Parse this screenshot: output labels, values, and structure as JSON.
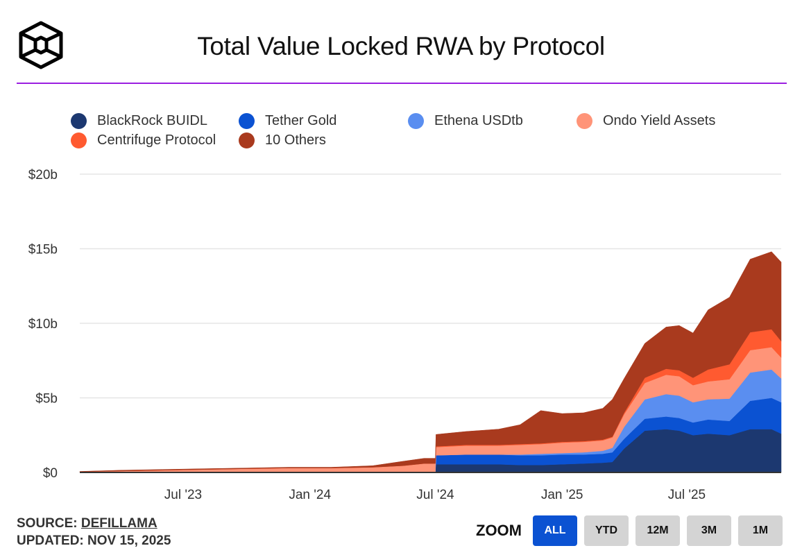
{
  "header": {
    "title": "Total Value Locked RWA by Protocol",
    "logo_icon": "hexagon-cube-logo-icon",
    "accent_rule_color": "#9b1fe0"
  },
  "legend": [
    {
      "name": "BlackRock BUIDL",
      "color": "#1c3870"
    },
    {
      "name": "Tether Gold",
      "color": "#0b52d2"
    },
    {
      "name": "Ethena USDtb",
      "color": "#5a8ef0"
    },
    {
      "name": "Ondo Yield Assets",
      "color": "#ff9478"
    },
    {
      "name": "Centrifuge Protocol",
      "color": "#ff5a30"
    },
    {
      "name": "10 Others",
      "color": "#a93a1e"
    }
  ],
  "footer": {
    "source_label": "SOURCE:",
    "source_link": "DEFILLAMA",
    "updated_label": "UPDATED: NOV 15, 2025"
  },
  "zoom": {
    "label": "ZOOM",
    "buttons": [
      {
        "label": "ALL",
        "active": true
      },
      {
        "label": "YTD",
        "active": false
      },
      {
        "label": "12M",
        "active": false
      },
      {
        "label": "3M",
        "active": false
      },
      {
        "label": "1M",
        "active": false
      }
    ],
    "active_color": "#0b52d2",
    "inactive_color": "#d4d4d4"
  },
  "chart_data": {
    "type": "area",
    "stacked": true,
    "title": "Total Value Locked RWA by Protocol",
    "xlabel": "",
    "ylabel": "",
    "y_unit": "USD billions",
    "ylim": [
      0,
      20
    ],
    "yticks": [
      0,
      5,
      10,
      15,
      20
    ],
    "ytick_labels": [
      "$0",
      "$5b",
      "$10b",
      "$15b",
      "$20b"
    ],
    "xticks": [
      "2023-07-01",
      "2024-01-01",
      "2024-07-01",
      "2025-01-01",
      "2025-07-01"
    ],
    "xtick_labels": [
      "Jul '23",
      "Jan '24",
      "Jul '24",
      "Jan '25",
      "Jul '25"
    ],
    "xlim": [
      "2023-02-01",
      "2025-11-15"
    ],
    "grid": true,
    "legend_position": "top",
    "x": [
      "2023-02-01",
      "2023-04-01",
      "2023-06-01",
      "2023-08-01",
      "2023-10-01",
      "2023-12-01",
      "2024-02-01",
      "2024-04-01",
      "2024-05-15",
      "2024-06-15",
      "2024-07-01",
      "2024-07-02",
      "2024-08-15",
      "2024-10-01",
      "2024-11-01",
      "2024-12-01",
      "2025-01-01",
      "2025-02-01",
      "2025-03-01",
      "2025-03-15",
      "2025-04-01",
      "2025-05-01",
      "2025-06-01",
      "2025-06-20",
      "2025-07-10",
      "2025-08-01",
      "2025-09-01",
      "2025-10-01",
      "2025-11-01",
      "2025-11-15"
    ],
    "series": [
      {
        "name": "BlackRock BUIDL",
        "values": [
          0,
          0,
          0,
          0,
          0,
          0,
          0,
          0,
          0,
          0,
          0,
          0.55,
          0.55,
          0.55,
          0.5,
          0.5,
          0.55,
          0.6,
          0.65,
          0.7,
          1.6,
          2.8,
          2.9,
          2.8,
          2.5,
          2.6,
          2.5,
          2.9,
          2.9,
          2.6
        ]
      },
      {
        "name": "Tether Gold",
        "values": [
          0,
          0,
          0,
          0,
          0,
          0,
          0,
          0,
          0,
          0,
          0,
          0.6,
          0.65,
          0.65,
          0.65,
          0.65,
          0.65,
          0.6,
          0.6,
          0.65,
          0.65,
          0.8,
          0.85,
          0.85,
          0.85,
          0.95,
          0.95,
          1.9,
          2.1,
          2.1
        ]
      },
      {
        "name": "Ethena USDtb",
        "values": [
          0,
          0,
          0,
          0,
          0,
          0,
          0,
          0,
          0,
          0,
          0,
          0,
          0,
          0,
          0.05,
          0.1,
          0.1,
          0.15,
          0.2,
          0.3,
          0.8,
          1.3,
          1.5,
          1.5,
          1.35,
          1.35,
          1.5,
          1.9,
          1.9,
          1.6
        ]
      },
      {
        "name": "Ondo Yield Assets",
        "values": [
          0.05,
          0.1,
          0.15,
          0.2,
          0.25,
          0.3,
          0.3,
          0.35,
          0.45,
          0.6,
          0.6,
          0.55,
          0.6,
          0.6,
          0.65,
          0.65,
          0.7,
          0.7,
          0.7,
          0.7,
          0.85,
          1.1,
          1.3,
          1.3,
          1.15,
          1.2,
          1.3,
          1.5,
          1.5,
          1.4
        ]
      },
      {
        "name": "Centrifuge Protocol",
        "values": [
          0,
          0,
          0,
          0,
          0,
          0,
          0,
          0,
          0,
          0,
          0,
          0.05,
          0.05,
          0.05,
          0.05,
          0.05,
          0.05,
          0.05,
          0.05,
          0.05,
          0.1,
          0.35,
          0.4,
          0.4,
          0.5,
          0.8,
          1.0,
          1.2,
          1.2,
          1.1
        ]
      },
      {
        "name": "10 Others",
        "values": [
          0.02,
          0.05,
          0.05,
          0.05,
          0.05,
          0.05,
          0.05,
          0.1,
          0.3,
          0.35,
          0.35,
          0.8,
          0.9,
          1.05,
          1.3,
          2.2,
          1.9,
          1.9,
          2.1,
          2.5,
          2.3,
          2.3,
          2.8,
          3.0,
          3.0,
          4.0,
          4.5,
          4.9,
          5.2,
          5.3
        ]
      }
    ]
  }
}
